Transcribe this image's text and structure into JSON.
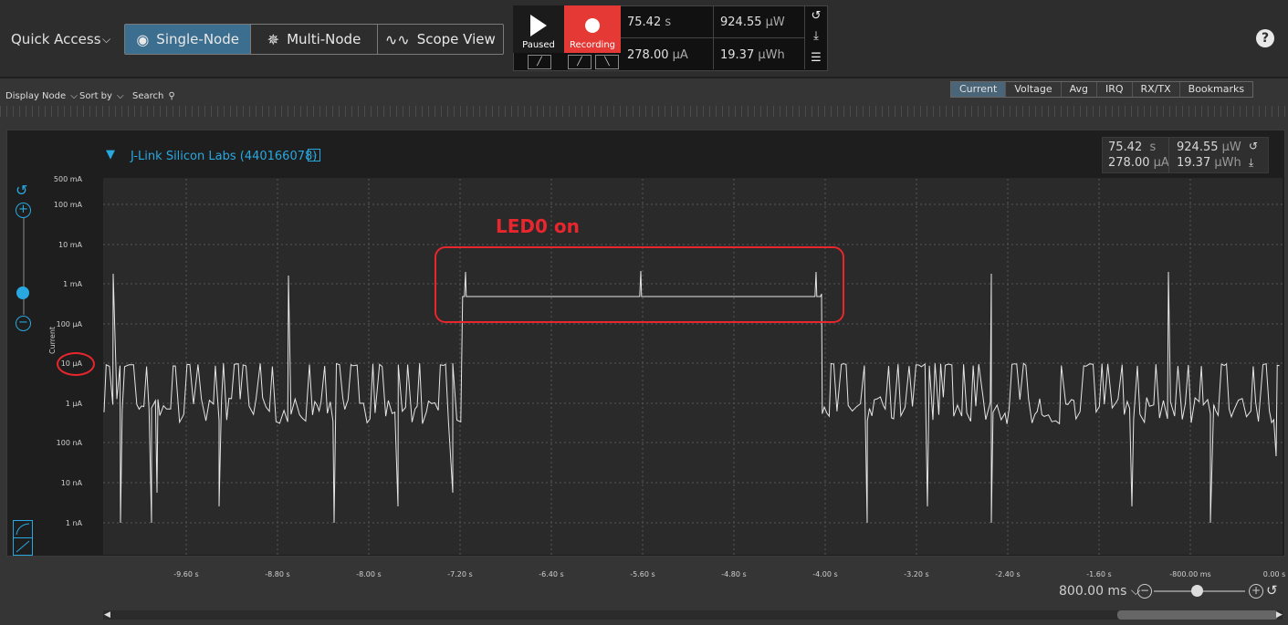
{
  "top": {
    "quick_access": "Quick Access",
    "modes": [
      {
        "label": "Single-Node",
        "icon": "radio-icon",
        "active": true
      },
      {
        "label": "Multi-Node",
        "icon": "nodes-icon",
        "active": false
      },
      {
        "label": "Scope View",
        "icon": "wave-icon",
        "active": false
      }
    ],
    "paused_label": "Paused",
    "recording_label": "Recording",
    "time": {
      "value": "75.42",
      "unit": "s"
    },
    "current": {
      "value": "278.00",
      "unit": "µA"
    },
    "power": {
      "value": "924.55",
      "unit": "µW"
    },
    "energy": {
      "value": "19.37",
      "unit": "µWh"
    },
    "help": "?"
  },
  "toolbar": {
    "display_node": "Display Node",
    "sort_by": "Sort by",
    "search": "Search",
    "tabs": [
      "Current",
      "Voltage",
      "Avg",
      "IRQ",
      "RX/TX",
      "Bookmarks"
    ],
    "active_tab": "Current"
  },
  "graph": {
    "device_title": "J-Link Silicon Labs (440166078)",
    "y_axis_label": "Current",
    "annotation": "LED0 on",
    "mini_readout": {
      "time": "75.42",
      "time_unit": "s",
      "current": "278.00",
      "current_unit": "µA",
      "power": "924.55",
      "power_unit": "µW",
      "energy": "19.37",
      "energy_unit": "µWh"
    },
    "zoom": "800.00 ms"
  },
  "chart_data": {
    "type": "line",
    "y_scale": "log",
    "y_ticks": [
      "500 mA",
      "100 mA",
      "10 mA",
      "1 mA",
      "100 µA",
      "10 µA",
      "1 µA",
      "100 nA",
      "10 nA",
      "1 nA"
    ],
    "x_ticks": [
      "-9.60 s",
      "-8.80 s",
      "-8.00 s",
      "-7.20 s",
      "-6.40 s",
      "-5.60 s",
      "-4.80 s",
      "-4.00 s",
      "-3.20 s",
      "-2.40 s",
      "-1.60 s",
      "-800.00 ms",
      "0.00 s"
    ],
    "series": [
      {
        "values_description_note": ""
      }
    ]
  },
  "colors": {
    "accent": "#29a8e0",
    "record": "#e53935",
    "trace": "#e6e6e6",
    "annotation": "#e8262d"
  }
}
